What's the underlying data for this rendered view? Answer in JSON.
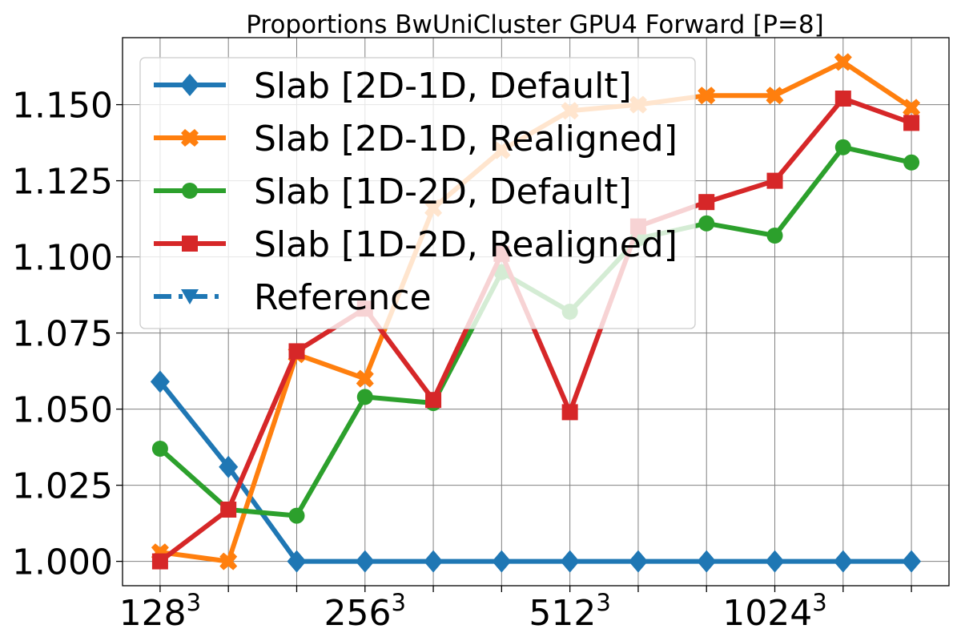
{
  "chart_data": {
    "type": "line",
    "title": "Proportions BwUniCluster GPU4 Forward [P=8]",
    "xlabel": "",
    "ylabel": "",
    "x_index": [
      0,
      1,
      2,
      3,
      4,
      5,
      6,
      7,
      8,
      9,
      10,
      11
    ],
    "x_tick_labels": [
      {
        "index": 0,
        "base": "128",
        "exp": "3"
      },
      {
        "index": 3,
        "base": "256",
        "exp": "3"
      },
      {
        "index": 6,
        "base": "512",
        "exp": "3"
      },
      {
        "index": 9,
        "base": "1024",
        "exp": "3"
      }
    ],
    "xlim": [
      -0.55,
      11.55
    ],
    "ylim": [
      0.992,
      1.172
    ],
    "y_ticks": [
      1.0,
      1.025,
      1.05,
      1.075,
      1.1,
      1.125,
      1.15
    ],
    "y_tick_labels": [
      "1.000",
      "1.025",
      "1.050",
      "1.075",
      "1.100",
      "1.125",
      "1.150"
    ],
    "grid": true,
    "legend_position": "upper-left",
    "series": [
      {
        "name": "Slab [2D-1D, Default]",
        "color": "#1f77b4",
        "marker": "diamond",
        "linestyle": "solid",
        "values": [
          1.059,
          1.031,
          1.0,
          1.0,
          1.0,
          1.0,
          1.0,
          1.0,
          1.0,
          1.0,
          1.0,
          1.0
        ]
      },
      {
        "name": "Slab [2D-1D, Realigned]",
        "color": "#ff7f0e",
        "marker": "x",
        "linestyle": "solid",
        "values": [
          1.003,
          1.0,
          1.068,
          1.06,
          1.116,
          1.135,
          1.148,
          1.15,
          1.153,
          1.153,
          1.164,
          1.149
        ]
      },
      {
        "name": "Slab [1D-2D, Default]",
        "color": "#2ca02c",
        "marker": "circle",
        "linestyle": "solid",
        "values": [
          1.037,
          1.017,
          1.015,
          1.054,
          1.052,
          1.095,
          1.082,
          1.106,
          1.111,
          1.107,
          1.136,
          1.131
        ]
      },
      {
        "name": "Slab [1D-2D, Realigned]",
        "color": "#d62728",
        "marker": "square",
        "linestyle": "solid",
        "values": [
          1.0,
          1.017,
          1.069,
          1.083,
          1.053,
          1.101,
          1.049,
          1.11,
          1.118,
          1.125,
          1.152,
          1.144
        ]
      },
      {
        "name": "Reference",
        "color": "#1f77b4",
        "marker": "triangle-down",
        "linestyle": "dashdot",
        "values": []
      }
    ]
  }
}
